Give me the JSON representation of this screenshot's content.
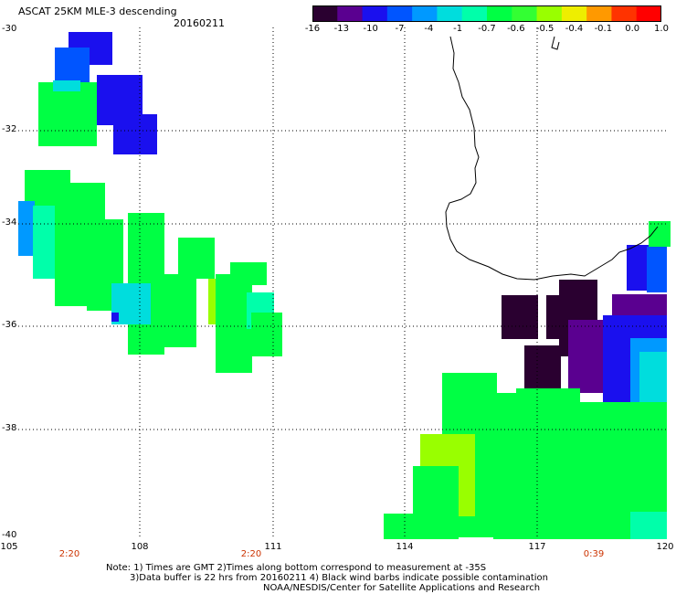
{
  "header": {
    "title": "ASCAT 25KM MLE-3 descending",
    "date": "20160211"
  },
  "colorbar": {
    "labels": [
      "-16",
      "-13",
      "-10",
      "-7",
      "-4",
      "-1",
      "-0.7",
      "-0.6",
      "-0.5",
      "-0.4",
      "-0.1",
      "0.0",
      "1.0"
    ],
    "colors": [
      "#2a0030",
      "#5a0090",
      "#1a10ee",
      "#0055ff",
      "#0099ff",
      "#00dddd",
      "#00ffaa",
      "#00ff44",
      "#33ff33",
      "#99ff00",
      "#eeee00",
      "#ff9900",
      "#ff3300",
      "#ff0000"
    ]
  },
  "axes": {
    "lat_labels": [
      "-30",
      "-32",
      "-34",
      "-36",
      "-38",
      "-40"
    ],
    "lon_labels": [
      "105",
      "108",
      "111",
      "114",
      "117",
      "120"
    ]
  },
  "pass_times": [
    "2:20",
    "2:20",
    "0:39"
  ],
  "notes": {
    "line1": "Note: 1) Times are GMT 2)Times along bottom correspond to measurement at -35S",
    "line2": "3)Data buffer is 22 hrs from 20160211 4) Black wind barbs indicate possible contamination",
    "line3": "NOAA/NESDIS/Center for Satellite Applications and Research"
  },
  "colors": {
    "deep_purple": "#2a0030",
    "purple": "#5a0090",
    "blue": "#1a10ee",
    "mid_blue": "#0055ff",
    "cyan": "#00dddd",
    "aqua_green": "#00ffaa",
    "green": "#00ff44",
    "yellow_green": "#99ff00",
    "time_red": "#cc3300"
  }
}
